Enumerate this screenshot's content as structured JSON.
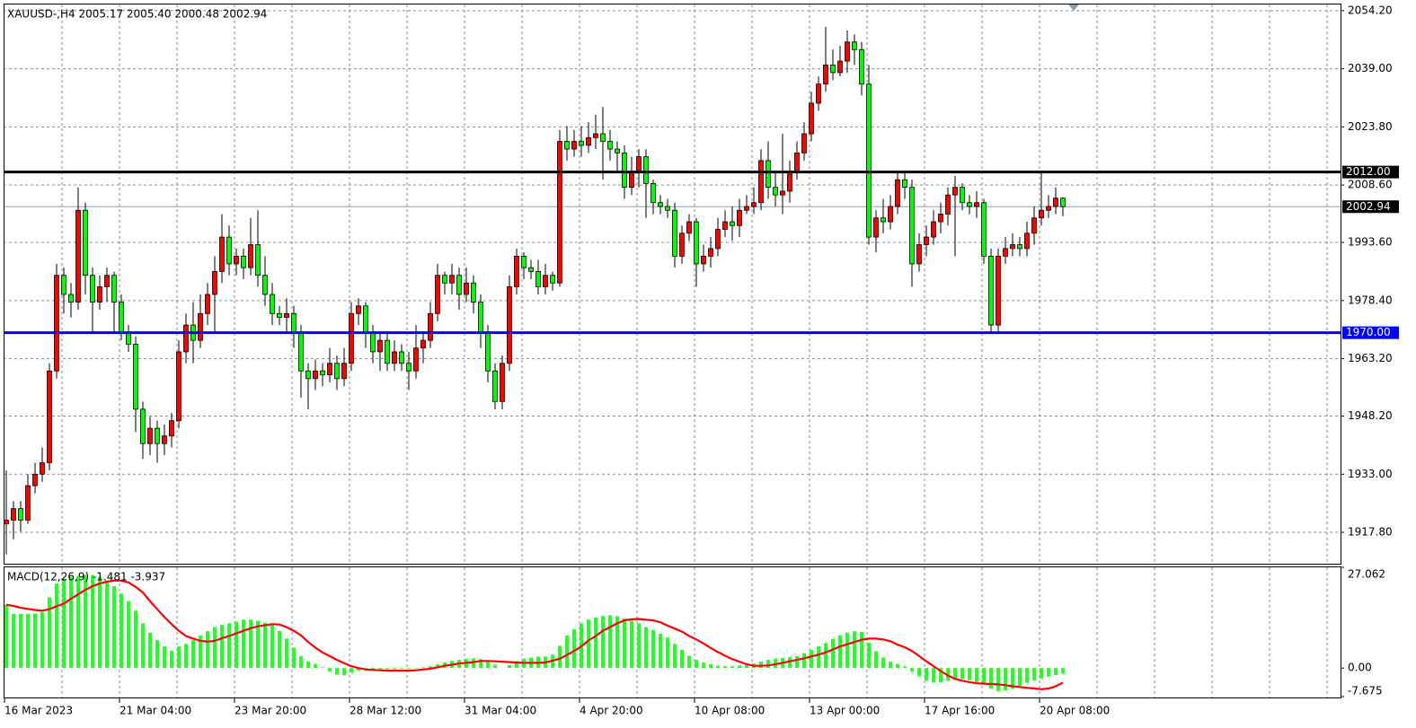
{
  "chart_data": [
    {
      "type": "candlestick",
      "title": "XAUUSD-,H4  2005.17 2005.40 2000.48 2002.94",
      "categories": [
        "16 Mar 2023",
        null,
        null,
        null,
        null,
        null,
        null,
        null,
        null,
        null,
        null,
        null,
        null,
        null,
        null,
        null,
        "21 Mar 04:00",
        null,
        null,
        null,
        null,
        null,
        null,
        null,
        null,
        null,
        null,
        null,
        null,
        null,
        null,
        null,
        "23 Mar 20:00",
        null,
        null,
        null,
        null,
        null,
        null,
        null,
        null,
        null,
        null,
        null,
        null,
        null,
        null,
        null,
        "28 Mar 12:00",
        null,
        null,
        null,
        null,
        null,
        null,
        null,
        null,
        null,
        null,
        null,
        null,
        null,
        null,
        null,
        "31 Mar 04:00",
        null,
        null,
        null,
        null,
        null,
        null,
        null,
        null,
        null,
        null,
        null,
        null,
        null,
        null,
        null,
        "4 Apr 20:00",
        null,
        null,
        null,
        null,
        null,
        null,
        null,
        null,
        null,
        null,
        null,
        null,
        null,
        null,
        null,
        "10 Apr 08:00",
        null,
        null,
        null,
        null,
        null,
        null,
        null,
        null,
        null,
        null,
        null,
        null,
        null,
        null,
        null,
        "13 Apr 00:00",
        null,
        null,
        null,
        null,
        null,
        null,
        null,
        null,
        null,
        null,
        null,
        null,
        null,
        null,
        null,
        "17 Apr 16:00",
        null,
        null,
        null,
        null,
        null,
        null,
        null,
        null,
        null,
        null,
        null,
        null,
        null,
        null,
        null,
        "20 Apr 08:00",
        null,
        null,
        null
      ],
      "open": [
        1920,
        1921,
        1924,
        1921,
        1930,
        1933,
        1936,
        1960,
        1985,
        1980,
        1978,
        2002,
        1985,
        1978,
        1982,
        1985,
        1978,
        1970,
        1967,
        1950,
        1941,
        1945,
        1941,
        1943,
        1947,
        1965,
        1972,
        1968,
        1975,
        1980,
        1986,
        1995,
        1988,
        1990,
        1987,
        1993,
        1985,
        1980,
        1975,
        1974,
        1975,
        1970,
        1960,
        1958,
        1960,
        1959,
        1962,
        1958,
        1962,
        1975,
        1977,
        1970,
        1965,
        1968,
        1962,
        1965,
        1962,
        1960,
        1966,
        1968,
        1975,
        1985,
        1983,
        1985,
        1980,
        1983,
        1978,
        1970,
        1960,
        1952,
        1962,
        1982,
        1990,
        1987,
        1986,
        1982,
        1985,
        1983,
        2020,
        2018,
        2020,
        2019,
        2021,
        2022,
        2020,
        2018,
        2017,
        2008,
        2012,
        2016,
        2009,
        2004,
        2003,
        2002,
        1990,
        1996,
        1999,
        1988,
        1990,
        1992,
        1997,
        1999,
        1998,
        2002,
        2003,
        2004,
        2015,
        2008,
        2006,
        2007,
        2012,
        2017,
        2022,
        2030,
        2035,
        2040,
        2038,
        2041,
        2046,
        2044,
        2035,
        1995,
        2000,
        1999,
        2003,
        2010,
        2008,
        1988,
        1993,
        1995,
        1999,
        2001,
        2006,
        2008,
        2004,
        2003,
        2004,
        1990,
        1972,
        1990,
        1992,
        1993,
        1992,
        1996,
        2000,
        2002,
        2003,
        2005.17
      ],
      "high": [
        1934,
        1926,
        1926,
        1933,
        1936,
        1940,
        1962,
        1988,
        1987,
        1983,
        2008,
        2004,
        1987,
        1985,
        1987,
        1986,
        1980,
        1972,
        1969,
        1952,
        1948,
        1947,
        1946,
        1949,
        1968,
        1975,
        1978,
        1980,
        1983,
        1990,
        2001,
        1998,
        1992,
        1992,
        2000,
        2002,
        1990,
        1983,
        1977,
        1979,
        1977,
        1972,
        1962,
        1963,
        1962,
        1966,
        1964,
        1966,
        1978,
        1979,
        1978,
        1972,
        1970,
        1970,
        1968,
        1967,
        1965,
        1972,
        1970,
        1978,
        1988,
        1986,
        1988,
        1987,
        1987,
        1985,
        1980,
        1972,
        1962,
        1964,
        1985,
        1992,
        1991,
        1989,
        1989,
        1988,
        1986,
        2023,
        2024,
        2023,
        2024,
        2025,
        2027,
        2029,
        2023,
        2020,
        2019,
        2016,
        2018,
        2018,
        2010,
        2006,
        2005,
        2004,
        1998,
        2001,
        2000,
        1993,
        1995,
        2000,
        2002,
        2003,
        2005,
        2006,
        2008,
        2018,
        2020,
        2012,
        2022,
        2015,
        2020,
        2025,
        2033,
        2037,
        2050,
        2044,
        2045,
        2049,
        2048,
        2046,
        2040,
        2002,
        2005,
        2006,
        2012,
        2012,
        2010,
        1996,
        1998,
        2002,
        2004,
        2008,
        2011,
        2009,
        2006,
        2007,
        2005,
        1992,
        1992,
        1995,
        1996,
        1995,
        1999,
        2003,
        2012,
        2006,
        2008,
        2005.4
      ],
      "low": [
        1912,
        1916,
        1918,
        1920,
        1928,
        1931,
        1934,
        1958,
        1975,
        1974,
        1976,
        1980,
        1970,
        1976,
        1978,
        1970,
        1968,
        1965,
        1944,
        1937,
        1938,
        1936,
        1938,
        1940,
        1945,
        1962,
        1962,
        1966,
        1972,
        1970,
        1983,
        1985,
        1985,
        1984,
        1985,
        1982,
        1977,
        1972,
        1972,
        1970,
        1966,
        1953,
        1950,
        1955,
        1956,
        1957,
        1955,
        1956,
        1960,
        1972,
        1966,
        1962,
        1960,
        1960,
        1960,
        1960,
        1955,
        1958,
        1962,
        1966,
        1973,
        1980,
        1980,
        1976,
        1978,
        1975,
        1966,
        1957,
        1950,
        1950,
        1960,
        1980,
        1984,
        1984,
        1980,
        1980,
        1981,
        1982,
        2015,
        2016,
        2016,
        2017,
        2018,
        2010,
        2015,
        2012,
        2005,
        2006,
        2008,
        2000,
        2001,
        2001,
        2000,
        1987,
        1988,
        1994,
        1982,
        1986,
        1987,
        1990,
        1995,
        1994,
        1995,
        2001,
        2001,
        2002,
        2005,
        2003,
        2001,
        2004,
        2010,
        2015,
        2020,
        2028,
        2033,
        2036,
        2037,
        2038,
        2040,
        2032,
        1993,
        1991,
        1996,
        1997,
        2001,
        2005,
        1982,
        1986,
        1990,
        1993,
        1996,
        1998,
        1990,
        2002,
        2001,
        2000,
        1988,
        1970,
        1970,
        1988,
        1990,
        1990,
        1990,
        1993,
        1998,
        2000,
        2001,
        2000.48
      ],
      "close": [
        1921,
        1924,
        1921,
        1930,
        1933,
        1936,
        1960,
        1985,
        1980,
        1978,
        2002,
        1985,
        1978,
        1982,
        1985,
        1978,
        1970,
        1967,
        1950,
        1941,
        1945,
        1941,
        1943,
        1947,
        1965,
        1972,
        1968,
        1975,
        1980,
        1986,
        1995,
        1988,
        1990,
        1987,
        1993,
        1985,
        1980,
        1975,
        1974,
        1975,
        1970,
        1960,
        1958,
        1960,
        1959,
        1962,
        1958,
        1962,
        1975,
        1977,
        1970,
        1965,
        1968,
        1962,
        1965,
        1962,
        1960,
        1966,
        1968,
        1975,
        1985,
        1983,
        1985,
        1980,
        1983,
        1978,
        1970,
        1960,
        1952,
        1962,
        1982,
        1990,
        1987,
        1986,
        1982,
        1985,
        1983,
        2020,
        2018,
        2020,
        2019,
        2021,
        2022,
        2020,
        2018,
        2017,
        2008,
        2012,
        2016,
        2009,
        2004,
        2003,
        2002,
        1990,
        1996,
        1999,
        1988,
        1990,
        1992,
        1997,
        1999,
        1998,
        2002,
        2003,
        2004,
        2015,
        2008,
        2006,
        2007,
        2012,
        2017,
        2022,
        2030,
        2035,
        2040,
        2038,
        2041,
        2046,
        2044,
        2035,
        1995,
        2000,
        1999,
        2003,
        2010,
        2008,
        1988,
        1993,
        1995,
        1999,
        2001,
        2006,
        2008,
        2004,
        2003,
        2004,
        1990,
        1972,
        1990,
        1992,
        1993,
        1992,
        1996,
        2000,
        2002,
        2003,
        2005.17,
        2002.94
      ],
      "up_color": "#ff0000",
      "down_color": "#00ff00",
      "ylim": [
        1909.6,
        2055.8
      ],
      "yticks": [
        {
          "value": 2054.2,
          "label": "2054.20"
        },
        {
          "value": 2039,
          "label": "2039.00"
        },
        {
          "value": 2023.8,
          "label": "2023.80"
        },
        {
          "value": 2008.6,
          "label": "2008.60"
        },
        {
          "value": 1993.6,
          "label": "1993.60"
        },
        {
          "value": 1978.4,
          "label": "1978.40"
        },
        {
          "value": 1963.2,
          "label": "1963.20"
        },
        {
          "value": 1948.2,
          "label": "1948.20"
        },
        {
          "value": 1933,
          "label": "1933.00"
        },
        {
          "value": 1917.8,
          "label": "1917.80"
        }
      ],
      "grid": true,
      "hlines": [
        {
          "value": 2012,
          "label": "2012.00",
          "color": "#000000"
        },
        {
          "value": 1970,
          "label": "1970.00",
          "color": "#0000ff"
        }
      ],
      "current_price": 2002.94
    },
    {
      "type": "macd",
      "title": "MACD(12,26,9) -1.481 -3.937",
      "histogram": [
        17,
        14.5,
        14.5,
        14.5,
        14.6,
        15,
        19,
        22.7,
        24,
        24.5,
        24.7,
        25,
        25,
        24.5,
        23.5,
        22,
        20,
        18,
        15.4,
        12,
        9.5,
        7.5,
        5.8,
        4.6,
        5.8,
        6.5,
        7.5,
        8.7,
        9.9,
        11,
        11.6,
        12,
        12.5,
        13,
        13,
        12.7,
        12.2,
        11.5,
        10,
        7.9,
        5.5,
        3.2,
        1.8,
        1,
        0.2,
        -1,
        -1.8,
        -2,
        -1.2,
        -0.7,
        -0.5,
        -0.4,
        -0.3,
        -0.3,
        -0.3,
        -0.2,
        -0.2,
        -0.1,
        0.2,
        0.5,
        1,
        1.5,
        1.9,
        2.2,
        2.5,
        2.6,
        2.4,
        1.8,
        0.9,
        0,
        0.8,
        1.8,
        2.5,
        2.8,
        3.1,
        3.1,
        3.6,
        6,
        8.7,
        10.4,
        12,
        13,
        13.6,
        14,
        14.2,
        13.9,
        13.3,
        12.7,
        12,
        11,
        10.2,
        9.2,
        8.2,
        6.5,
        4.9,
        3.3,
        2.2,
        1.5,
        1,
        0.6,
        0.5,
        0.5,
        0.7,
        0.9,
        1.2,
        1.7,
        2.2,
        2.5,
        2.7,
        2.9,
        3.2,
        4,
        4.9,
        5.8,
        6.7,
        7.8,
        8.8,
        9.5,
        9.9,
        9.7,
        6.8,
        4.5,
        2.8,
        1.7,
        1.1,
        0.4,
        -1,
        -2.2,
        -3.4,
        -3.9,
        -3.9,
        -3.4,
        -3,
        -2.9,
        -3.3,
        -3.8,
        -4.5,
        -5.5,
        -6.3,
        -6,
        -5.5,
        -4.8,
        -4,
        -3.4,
        -2.8,
        -2.3,
        -1.9,
        -1.481
      ],
      "signal": [
        17,
        16.7,
        16.2,
        15.9,
        15.6,
        15.4,
        15.8,
        16.6,
        17.3,
        18.6,
        19.8,
        21,
        22,
        22.7,
        23.2,
        23.5,
        23.5,
        23,
        21.8,
        20.3,
        18,
        15.8,
        13.7,
        11.8,
        10,
        8.6,
        7.9,
        7.3,
        7.1,
        7.3,
        8,
        8.6,
        9.3,
        10,
        10.7,
        11.2,
        11.5,
        11.8,
        11.7,
        11,
        10,
        8.8,
        7,
        5.5,
        4.2,
        3.2,
        2.2,
        1.3,
        0.5,
        0,
        -0.4,
        -0.5,
        -0.6,
        -0.7,
        -0.7,
        -0.7,
        -0.7,
        -0.6,
        -0.4,
        -0.2,
        0.2,
        0.6,
        0.9,
        1.2,
        1.4,
        1.6,
        1.9,
        1.9,
        1.8,
        1.7,
        1.6,
        1.5,
        1.4,
        1.4,
        1.4,
        1.5,
        2,
        2.5,
        3.5,
        4.6,
        5.8,
        7.4,
        8.6,
        10,
        11,
        12,
        12.8,
        13.1,
        13.2,
        13,
        12.8,
        12.3,
        11.4,
        10.6,
        9.8,
        8.6,
        7.7,
        6.6,
        5.4,
        4.3,
        3.3,
        2.4,
        1.7,
        1,
        0.6,
        0.6,
        0.7,
        1,
        1.4,
        1.8,
        2.2,
        2.6,
        3.1,
        3.6,
        4.2,
        5,
        5.8,
        6.4,
        7,
        7.6,
        7.9,
        7.9,
        7.7,
        7.2,
        6.3,
        5.6,
        4.6,
        3.2,
        1.8,
        0.5,
        -0.8,
        -2,
        -2.9,
        -3.4,
        -3.8,
        -4.1,
        -4.2,
        -4.3,
        -4.4,
        -4.6,
        -4.9,
        -5.1,
        -5.3,
        -5.5,
        -5.7,
        -5.5,
        -4.9,
        -3.937
      ],
      "histogram_color": "#22ff22",
      "signal_color": "#ff0000",
      "ylim": [
        -7.675,
        27.062
      ],
      "yticks": [
        27.062,
        {
          "value": 0,
          "label": "0.00"
        },
        -7.675
      ]
    }
  ]
}
